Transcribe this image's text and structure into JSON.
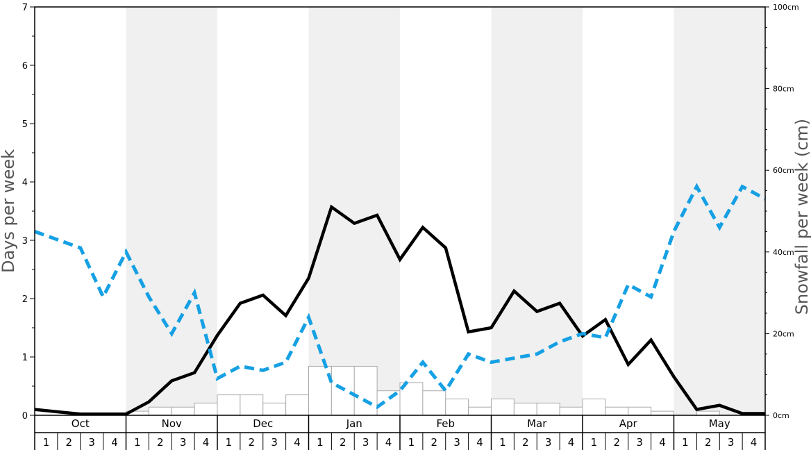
{
  "chart_data": {
    "type": "bar+line",
    "ylabel": "Days per week",
    "y2label": "Snowfall per week (cm)",
    "ylim": [
      0,
      7
    ],
    "y2lim": [
      0,
      100
    ],
    "y_ticks": [
      "0",
      "1",
      "2",
      "3",
      "4",
      "5",
      "6",
      "7"
    ],
    "y2_ticks": [
      "0cm",
      "20cm",
      "40cm",
      "60cm",
      "80cm",
      "100cm"
    ],
    "months": [
      "Oct",
      "Nov",
      "Dec",
      "Jan",
      "Feb",
      "Mar",
      "Apr",
      "May"
    ],
    "weeks": [
      "1",
      "2",
      "3",
      "4"
    ],
    "band_color": "#f0f0f0",
    "series": [
      {
        "kind": "bar",
        "axis": "y2",
        "color": "#ffffff",
        "stroke": "#aaaaaa",
        "values": [
          0,
          0,
          0,
          0,
          1,
          2,
          2,
          3,
          5,
          5,
          3,
          5,
          12,
          12,
          12,
          6,
          8,
          6,
          4,
          2,
          4,
          3,
          3,
          2,
          4,
          2,
          2,
          1,
          0,
          1,
          0,
          0
        ]
      },
      {
        "kind": "line",
        "axis": "y",
        "style": "solid",
        "color": "#000000",
        "values": [
          0.1,
          0.06,
          0.02,
          0.02,
          0.02,
          0.23,
          0.59,
          0.73,
          1.37,
          1.92,
          2.06,
          1.71,
          2.35,
          3.57,
          3.29,
          3.43,
          2.67,
          3.22,
          2.87,
          1.43,
          1.5,
          2.13,
          1.78,
          1.92,
          1.36,
          1.64,
          0.87,
          1.29,
          0.66,
          0.1,
          0.17,
          0.03,
          0.03
        ]
      },
      {
        "kind": "line",
        "axis": "y",
        "style": "dashed",
        "color": "#16a0e4",
        "values": [
          3.15,
          3.01,
          2.87,
          2.03,
          2.8,
          2.03,
          1.4,
          2.1,
          0.63,
          0.84,
          0.77,
          0.91,
          1.68,
          0.56,
          0.35,
          0.14,
          0.42,
          0.91,
          0.42,
          1.05,
          0.91,
          0.98,
          1.05,
          1.26,
          1.4,
          1.33,
          2.24,
          2.03,
          3.15,
          3.92,
          3.22,
          3.92,
          3.71
        ]
      }
    ]
  }
}
